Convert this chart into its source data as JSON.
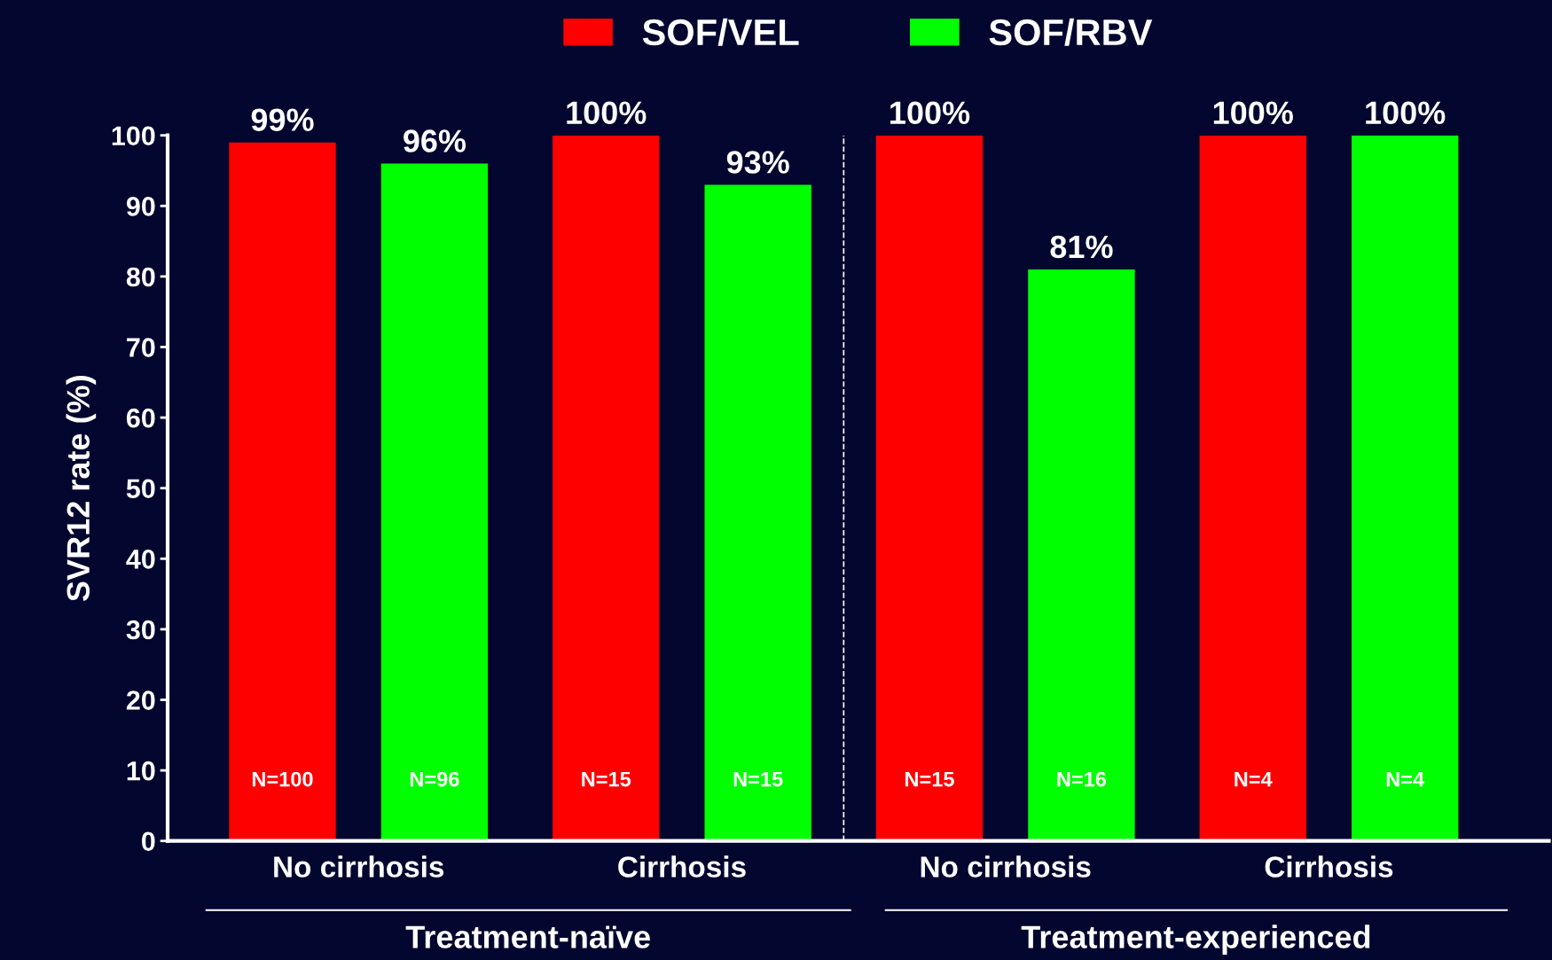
{
  "chart_data": {
    "type": "bar",
    "ylabel": "SVR12 rate (%)",
    "categories": [
      "No cirrhosis",
      "Cirrhosis",
      "No cirrhosis",
      "Cirrhosis"
    ],
    "series": [
      {
        "name": "SOF/VEL",
        "color": "#ff0000",
        "values": [
          99,
          100,
          100,
          100
        ],
        "value_labels": [
          "99%",
          "100%",
          "100%",
          "100%"
        ]
      },
      {
        "name": "SOF/RBV",
        "color": "#00ff00",
        "values": [
          96,
          93,
          81,
          100
        ],
        "value_labels": [
          "96%",
          "93%",
          "81%",
          "100%"
        ]
      }
    ],
    "annotations": [
      "N=100",
      "N=96",
      "N=15",
      "N=15",
      "N=15",
      "N=16",
      "N=4",
      "N=4",
      "Treatment-naïve",
      "Treatment-experienced"
    ],
    "ylim": [
      0,
      100
    ],
    "yticks": [
      0,
      10,
      20,
      30,
      40,
      50,
      60,
      70,
      80,
      90,
      100
    ],
    "grid": false,
    "legend": "top"
  }
}
